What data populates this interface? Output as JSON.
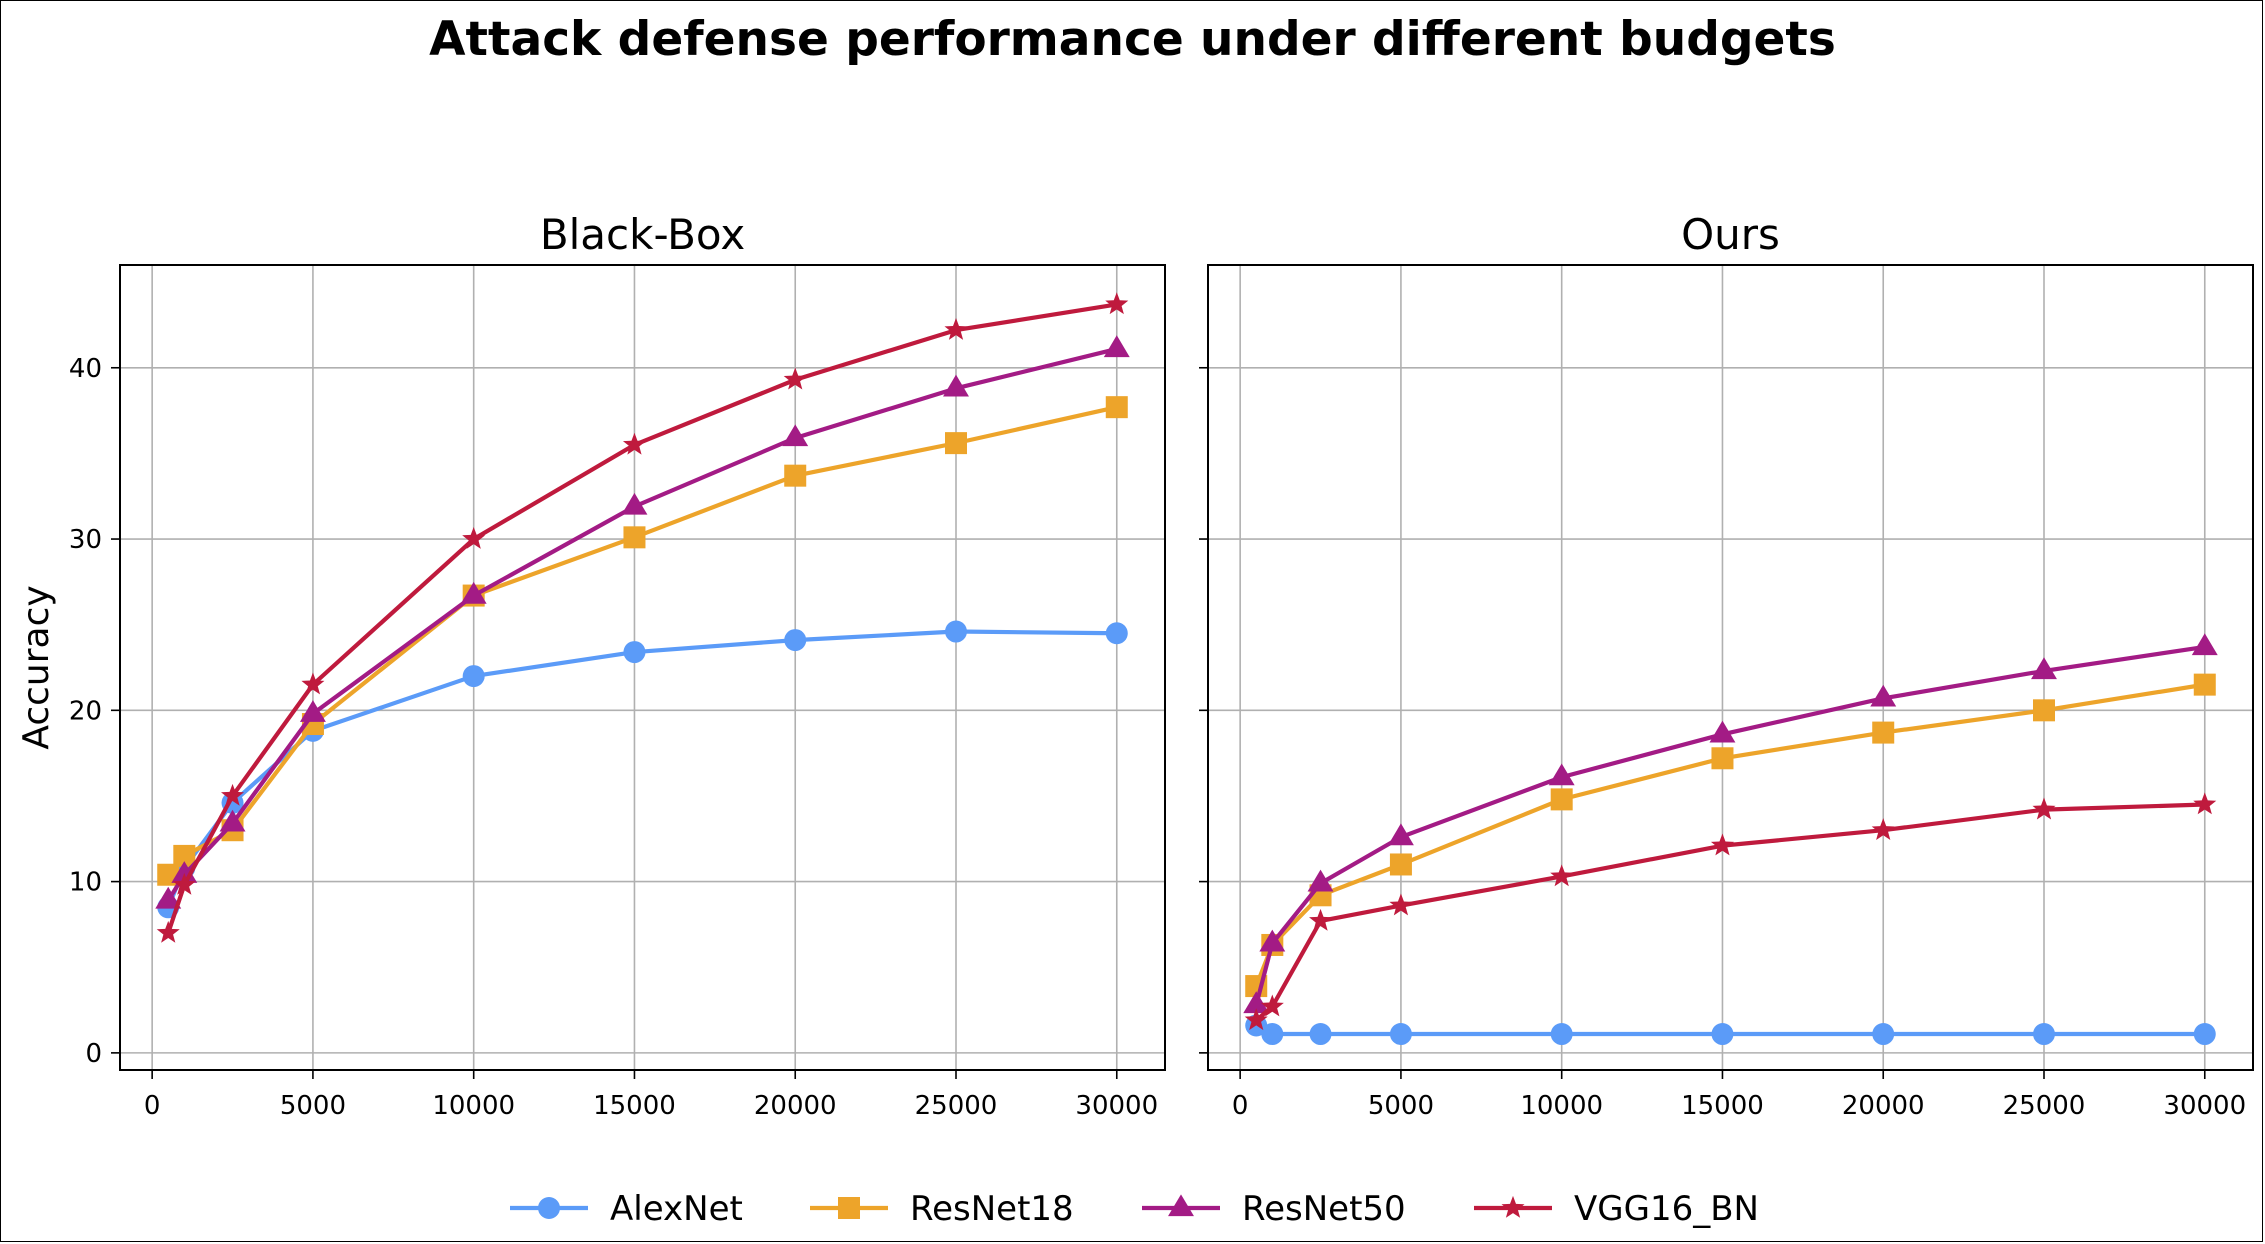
{
  "figure_title": "Attack defense performance under different budgets",
  "colors": {
    "AlexNet": "#5b9bf8",
    "ResNet18": "#eda42a",
    "ResNet50": "#a31b85",
    "VGG16_BN": "#bf1a3d",
    "grid": "#b0b0b0"
  },
  "chart_data": [
    {
      "type": "line",
      "title": "Black-Box",
      "xlabel": "",
      "ylabel": "Accuracy",
      "xlim": [
        -1000,
        31500
      ],
      "ylim": [
        -1,
        46
      ],
      "xticks": [
        0,
        5000,
        10000,
        15000,
        20000,
        25000,
        30000
      ],
      "yticks": [
        0,
        10,
        20,
        30,
        40
      ],
      "grid": true,
      "x": [
        500,
        1000,
        2500,
        5000,
        10000,
        15000,
        20000,
        25000,
        30000
      ],
      "series": [
        {
          "name": "AlexNet",
          "marker": "circle",
          "values": [
            8.5,
            10.8,
            14.6,
            18.8,
            22.0,
            23.4,
            24.1,
            24.6,
            24.5
          ]
        },
        {
          "name": "ResNet18",
          "marker": "square",
          "values": [
            10.4,
            11.5,
            13.0,
            19.2,
            26.7,
            30.1,
            33.7,
            35.6,
            37.7
          ]
        },
        {
          "name": "ResNet50",
          "marker": "triangle",
          "values": [
            8.9,
            10.4,
            13.4,
            19.8,
            26.7,
            31.9,
            35.9,
            38.8,
            41.1
          ]
        },
        {
          "name": "VGG16_BN",
          "marker": "star",
          "values": [
            7.0,
            9.8,
            15.0,
            21.5,
            30.0,
            35.5,
            39.3,
            42.2,
            43.7
          ]
        }
      ]
    },
    {
      "type": "line",
      "title": "Ours",
      "xlabel": "",
      "ylabel": "",
      "xlim": [
        -1000,
        31500
      ],
      "ylim": [
        -1,
        46
      ],
      "xticks": [
        0,
        5000,
        10000,
        15000,
        20000,
        25000,
        30000
      ],
      "yticks": [
        0,
        10,
        20,
        30,
        40
      ],
      "grid": true,
      "x": [
        500,
        1000,
        2500,
        5000,
        10000,
        15000,
        20000,
        25000,
        30000
      ],
      "series": [
        {
          "name": "AlexNet",
          "marker": "circle",
          "values": [
            1.6,
            1.1,
            1.1,
            1.1,
            1.1,
            1.1,
            1.1,
            1.1,
            1.1
          ]
        },
        {
          "name": "ResNet18",
          "marker": "square",
          "values": [
            3.9,
            6.3,
            9.2,
            11.0,
            14.8,
            17.2,
            18.7,
            20.0,
            21.5
          ]
        },
        {
          "name": "ResNet50",
          "marker": "triangle",
          "values": [
            2.8,
            6.4,
            9.9,
            12.6,
            16.1,
            18.6,
            20.7,
            22.3,
            23.7
          ]
        },
        {
          "name": "VGG16_BN",
          "marker": "star",
          "values": [
            1.9,
            2.7,
            7.7,
            8.6,
            10.3,
            12.1,
            13.0,
            14.2,
            14.5
          ]
        }
      ]
    }
  ],
  "legend": {
    "placement": "bottom-center",
    "entries": [
      {
        "label": "AlexNet",
        "marker": "circle"
      },
      {
        "label": "ResNet18",
        "marker": "square"
      },
      {
        "label": "ResNet50",
        "marker": "triangle"
      },
      {
        "label": "VGG16_BN",
        "marker": "star"
      }
    ]
  }
}
